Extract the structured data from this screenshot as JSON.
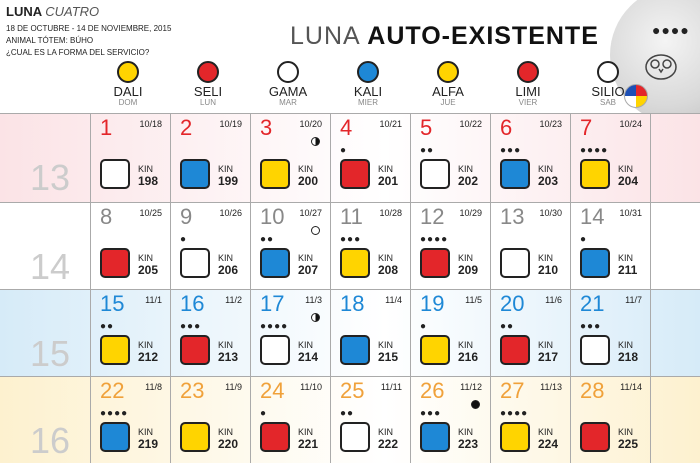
{
  "header": {
    "luna": "LUNA",
    "cuatro": "CUATRO",
    "line1": "18 DE OCTUBRE  - 14 DE NOVIEMBRE, 2015",
    "line2": "ANIMAL TÓTEM: BÚHO",
    "line3": "¿CUAL ES LA FORMA DEL SERVICIO?",
    "title_a": "LUNA",
    "title_b": "AUTO-EXISTENTE",
    "moon_dots": "●●●●"
  },
  "days": [
    {
      "name": "DALI",
      "sub": "DOM",
      "color": "#ffd400"
    },
    {
      "name": "SELI",
      "sub": "LUN",
      "color": "#e3262a"
    },
    {
      "name": "GAMA",
      "sub": "MAR",
      "color": "#ffffff"
    },
    {
      "name": "KALI",
      "sub": "MIER",
      "color": "#1e88d6"
    },
    {
      "name": "ALFA",
      "sub": "JUE",
      "color": "#ffd400"
    },
    {
      "name": "LIMI",
      "sub": "VIER",
      "color": "#e3262a"
    },
    {
      "name": "SILIO",
      "sub": "SAB",
      "color": "#ffffff"
    }
  ],
  "weeks": [
    {
      "num": "13",
      "bg": "#fbe3e6",
      "numcolor": "#e3262a"
    },
    {
      "num": "14",
      "bg": "#ffffff",
      "numcolor": "#888888"
    },
    {
      "num": "15",
      "bg": "#d6ebf8",
      "numcolor": "#1e88d6"
    },
    {
      "num": "16",
      "bg": "#fdf1cf",
      "numcolor": "#f0a13a"
    }
  ],
  "kin_label": "KIN",
  "cells": [
    {
      "d": "1",
      "dt": "10/18",
      "kin": "198",
      "dots": "",
      "gc": "#ffffff",
      "ph": ""
    },
    {
      "d": "2",
      "dt": "10/19",
      "kin": "199",
      "dots": "",
      "gc": "#1e88d6",
      "ph": ""
    },
    {
      "d": "3",
      "dt": "10/20",
      "kin": "200",
      "dots": "",
      "gc": "#ffd400",
      "ph": "half"
    },
    {
      "d": "4",
      "dt": "10/21",
      "kin": "201",
      "dots": "●",
      "gc": "#e3262a",
      "ph": ""
    },
    {
      "d": "5",
      "dt": "10/22",
      "kin": "202",
      "dots": "●●",
      "gc": "#ffffff",
      "ph": ""
    },
    {
      "d": "6",
      "dt": "10/23",
      "kin": "203",
      "dots": "●●●",
      "gc": "#1e88d6",
      "ph": ""
    },
    {
      "d": "7",
      "dt": "10/24",
      "kin": "204",
      "dots": "●●●●",
      "gc": "#ffd400",
      "ph": ""
    },
    {
      "d": "8",
      "dt": "10/25",
      "kin": "205",
      "dots": "",
      "gc": "#e3262a",
      "ph": ""
    },
    {
      "d": "9",
      "dt": "10/26",
      "kin": "206",
      "dots": "●",
      "gc": "#ffffff",
      "ph": ""
    },
    {
      "d": "10",
      "dt": "10/27",
      "kin": "207",
      "dots": "●●",
      "gc": "#1e88d6",
      "ph": "new"
    },
    {
      "d": "11",
      "dt": "10/28",
      "kin": "208",
      "dots": "●●●",
      "gc": "#ffd400",
      "ph": ""
    },
    {
      "d": "12",
      "dt": "10/29",
      "kin": "209",
      "dots": "●●●●",
      "gc": "#e3262a",
      "ph": ""
    },
    {
      "d": "13",
      "dt": "10/30",
      "kin": "210",
      "dots": "",
      "gc": "#ffffff",
      "ph": ""
    },
    {
      "d": "14",
      "dt": "10/31",
      "kin": "211",
      "dots": "●",
      "gc": "#1e88d6",
      "ph": ""
    },
    {
      "d": "15",
      "dt": "11/1",
      "kin": "212",
      "dots": "●●",
      "gc": "#ffd400",
      "ph": ""
    },
    {
      "d": "16",
      "dt": "11/2",
      "kin": "213",
      "dots": "●●●",
      "gc": "#e3262a",
      "ph": ""
    },
    {
      "d": "17",
      "dt": "11/3",
      "kin": "214",
      "dots": "●●●●",
      "gc": "#ffffff",
      "ph": "half"
    },
    {
      "d": "18",
      "dt": "11/4",
      "kin": "215",
      "dots": "",
      "gc": "#1e88d6",
      "ph": ""
    },
    {
      "d": "19",
      "dt": "11/5",
      "kin": "216",
      "dots": "●",
      "gc": "#ffd400",
      "ph": ""
    },
    {
      "d": "20",
      "dt": "11/6",
      "kin": "217",
      "dots": "●●",
      "gc": "#e3262a",
      "ph": ""
    },
    {
      "d": "21",
      "dt": "11/7",
      "kin": "218",
      "dots": "●●●",
      "gc": "#ffffff",
      "ph": ""
    },
    {
      "d": "22",
      "dt": "11/8",
      "kin": "219",
      "dots": "●●●●",
      "gc": "#1e88d6",
      "ph": ""
    },
    {
      "d": "23",
      "dt": "11/9",
      "kin": "220",
      "dots": "",
      "gc": "#ffd400",
      "ph": ""
    },
    {
      "d": "24",
      "dt": "11/10",
      "kin": "221",
      "dots": "●",
      "gc": "#e3262a",
      "ph": ""
    },
    {
      "d": "25",
      "dt": "11/11",
      "kin": "222",
      "dots": "●●",
      "gc": "#ffffff",
      "ph": ""
    },
    {
      "d": "26",
      "dt": "11/12",
      "kin": "223",
      "dots": "●●●",
      "gc": "#1e88d6",
      "ph": "full"
    },
    {
      "d": "27",
      "dt": "11/13",
      "kin": "224",
      "dots": "●●●●",
      "gc": "#ffd400",
      "ph": ""
    },
    {
      "d": "28",
      "dt": "11/14",
      "kin": "225",
      "dots": "",
      "gc": "#e3262a",
      "ph": ""
    }
  ]
}
